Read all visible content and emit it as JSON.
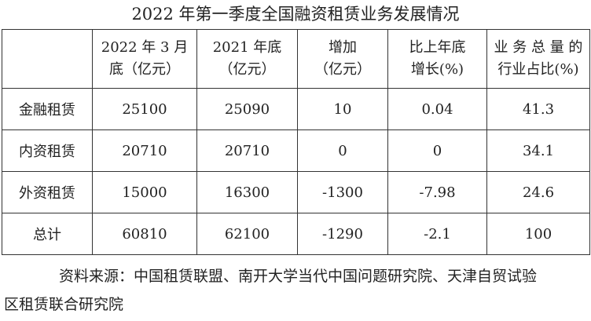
{
  "title": "2022 年第一季度全国融资租赁业务发展情况",
  "table": {
    "header": [
      [],
      [
        "2022 年 3 月",
        "底（亿元）"
      ],
      [
        "2021 年底",
        "（亿元）"
      ],
      [
        "增加",
        "（亿元）"
      ],
      [
        "比上年底",
        "增长(%)"
      ],
      [
        "业 务 总 量 的",
        "行业占比(%)"
      ]
    ],
    "rows": [
      [
        "金融租赁",
        "25100",
        "25090",
        "10",
        "0.04",
        "41.3"
      ],
      [
        "内资租赁",
        "20710",
        "20710",
        "0",
        "0",
        "34.1"
      ],
      [
        "外资租赁",
        "15000",
        "16300",
        "-1300",
        "-7.98",
        "24.6"
      ],
      [
        "总计",
        "60810",
        "62100",
        "-1290",
        "-2.1",
        "100"
      ]
    ]
  },
  "source": [
    "资料来源：中国租赁联盟、南开大学当代中国问题研究院、天津自贸试验",
    "区租赁联合研究院"
  ]
}
